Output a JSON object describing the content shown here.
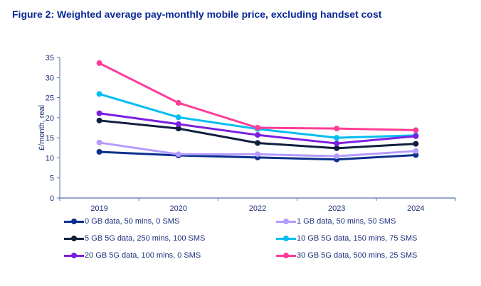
{
  "title": "Figure 2: Weighted average pay-monthly mobile price, excluding handset cost",
  "chart_data": {
    "type": "line",
    "title": "Figure 2: Weighted average pay-monthly mobile price, excluding handset cost",
    "xlabel": "",
    "ylabel": "£/month, real",
    "x": [
      "2019",
      "2020",
      "2022",
      "2023",
      "2024"
    ],
    "ylim": [
      0,
      35
    ],
    "yticks": [
      0,
      5,
      10,
      15,
      20,
      25,
      30,
      35
    ],
    "grid": false,
    "legend_position": "bottom",
    "series": [
      {
        "name": "0 GB data, 50 mins, 0 SMS",
        "color": "#0a2f8c",
        "values": [
          11.5,
          10.6,
          10.1,
          9.6,
          10.7
        ]
      },
      {
        "name": "1 GB data, 50 mins, 50 SMS",
        "color": "#b49cff",
        "values": [
          13.8,
          10.9,
          10.9,
          10.4,
          11.7
        ]
      },
      {
        "name": "5 GB 5G data, 250 mins, 100 SMS",
        "color": "#0f1f3d",
        "values": [
          19.3,
          17.3,
          13.7,
          12.4,
          13.5
        ]
      },
      {
        "name": "10 GB 5G data, 150 mins, 75 SMS",
        "color": "#00bdf2",
        "values": [
          25.9,
          20.1,
          17.2,
          15.0,
          15.6
        ]
      },
      {
        "name": "20 GB 5G data, 100 mins, 0 SMS",
        "color": "#7b1fe0",
        "values": [
          21.1,
          18.4,
          15.7,
          13.6,
          15.4
        ]
      },
      {
        "name": "30 GB 5G data, 500 mins, 25 SMS",
        "color": "#ff3d96",
        "values": [
          33.6,
          23.7,
          17.5,
          17.3,
          16.9
        ]
      }
    ]
  }
}
